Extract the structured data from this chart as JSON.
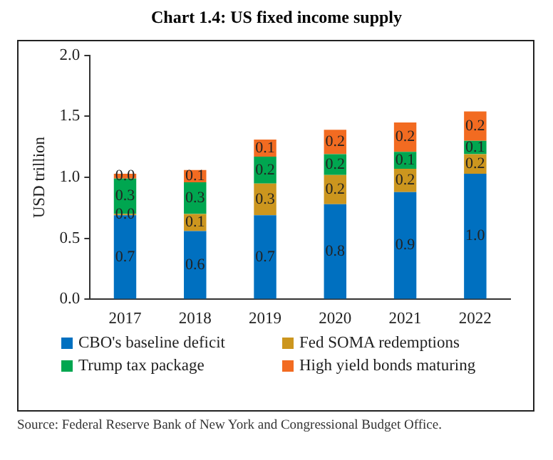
{
  "chart_data": {
    "type": "bar",
    "title": "Chart 1.4: US fixed income supply",
    "ylabel": "USD trillion",
    "categories": [
      "2017",
      "2018",
      "2019",
      "2020",
      "2021",
      "2022"
    ],
    "stacked": true,
    "series": [
      {
        "name": "CBO's baseline deficit",
        "color": "#0070c0",
        "values": [
          0.69,
          0.56,
          0.69,
          0.78,
          0.88,
          1.03
        ],
        "value_labels": [
          "0.7",
          "0.6",
          "0.7",
          "0.8",
          "0.9",
          "1.0"
        ]
      },
      {
        "name": "Fed SOMA redemptions",
        "color": "#cc961e",
        "values": [
          0.01,
          0.14,
          0.26,
          0.24,
          0.19,
          0.16
        ],
        "value_labels": [
          "0.0",
          "0.1",
          "0.3",
          "0.2",
          "0.2",
          "0.2"
        ]
      },
      {
        "name": "Trump tax package",
        "color": "#00a650",
        "values": [
          0.29,
          0.26,
          0.22,
          0.17,
          0.14,
          0.11
        ],
        "value_labels": [
          "0.3",
          "0.3",
          "0.2",
          "0.2",
          "0.1",
          "0.1"
        ]
      },
      {
        "name": "High yield bonds maturing",
        "color": "#f26b21",
        "values": [
          0.04,
          0.1,
          0.14,
          0.2,
          0.24,
          0.24
        ],
        "value_labels": [
          "0.0",
          "0.1",
          "0.1",
          "0.2",
          "0.2",
          "0.2"
        ]
      }
    ],
    "ylim": [
      0,
      2
    ],
    "yticks": [
      {
        "value": 0,
        "label": "0.0"
      },
      {
        "value": 0.5,
        "label": "0.5"
      },
      {
        "value": 1,
        "label": "1.0"
      },
      {
        "value": 1.5,
        "label": "1.5"
      },
      {
        "value": 2,
        "label": "2.0"
      }
    ],
    "grid": false,
    "legend": "bottom",
    "annotations": [
      "Source: Federal Reserve Bank of New York and Congressional Budget Office."
    ]
  }
}
